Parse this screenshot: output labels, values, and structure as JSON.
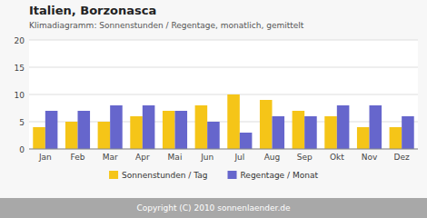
{
  "chart_data": {
    "type": "bar",
    "title": "Italien, Borzonasca",
    "subtitle": "Klimadiagramm: Sonnenstunden / Regentage, monatlich, gemittelt",
    "categories": [
      "Jan",
      "Feb",
      "Mar",
      "Apr",
      "Mai",
      "Jun",
      "Jul",
      "Aug",
      "Sep",
      "Okt",
      "Nov",
      "Dez"
    ],
    "series": [
      {
        "name": "Sonnenstunden / Tag",
        "color": "#F5C518",
        "values": [
          4,
          5,
          5,
          6,
          7,
          8,
          10,
          9,
          7,
          6,
          4,
          4
        ]
      },
      {
        "name": "Regentage / Monat",
        "color": "#6666CC",
        "values": [
          7,
          7,
          8,
          8,
          7,
          5,
          3,
          6,
          6,
          8,
          8,
          6
        ]
      }
    ],
    "ylim": [
      0,
      20
    ],
    "yticks": [
      0,
      5,
      10,
      15,
      20
    ],
    "grid": true,
    "legend": "bottom",
    "annotations": [
      "Copyright (C) 2010 sonnenlaender.de"
    ]
  }
}
